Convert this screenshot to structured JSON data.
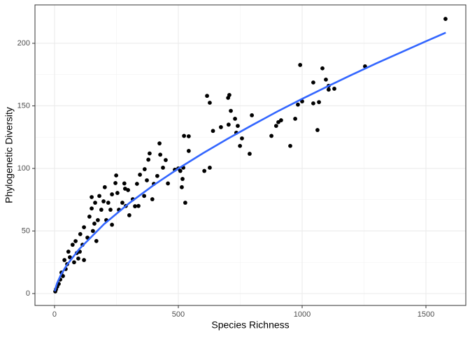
{
  "chart_data": {
    "type": "scatter",
    "x_label": "Species Richness",
    "y_label": "Phylogenetic Diversity",
    "xlim": [
      -79,
      1661
    ],
    "ylim": [
      -9.5,
      230.7
    ],
    "xticks": [
      0,
      500,
      1000,
      1500
    ],
    "yticks": [
      0,
      50,
      100,
      150,
      200
    ],
    "x_minor_grid": [
      250,
      750,
      1250
    ],
    "y_minor_grid": [
      25,
      75,
      125,
      175
    ],
    "grid": true,
    "points": {
      "color": "#000000",
      "x": [
        1579,
        1254,
        992,
        1082,
        1096,
        1045,
        1107,
        1130,
        1107,
        1068,
        1045,
        1062,
        1000,
        983,
        972,
        915,
        904,
        895,
        952,
        876,
        788,
        797,
        712,
        706,
        701,
        616,
        627,
        729,
        740,
        703,
        757,
        749,
        734,
        672,
        640,
        627,
        605,
        542,
        523,
        542,
        528,
        514,
        517,
        500,
        508,
        520,
        486,
        449,
        438,
        424,
        427,
        458,
        415,
        401,
        379,
        384,
        364,
        345,
        333,
        373,
        362,
        395,
        339,
        325,
        316,
        297,
        282,
        285,
        274,
        249,
        246,
        254,
        232,
        226,
        217,
        203,
        198,
        189,
        175,
        161,
        150,
        155,
        141,
        133,
        119,
        113,
        104,
        90,
        85,
        96,
        73,
        62,
        56,
        51,
        45,
        40,
        34,
        28,
        23,
        17,
        11,
        6,
        3,
        119,
        102,
        79,
        169,
        209,
        232,
        260,
        288,
        181,
        164,
        150,
        302
      ],
      "values": [
        219.5,
        181.6,
        182.7,
        180,
        171,
        168.7,
        166,
        163.7,
        163,
        153,
        152,
        130.7,
        153.6,
        151,
        139.7,
        138.5,
        137,
        134,
        118,
        126,
        111.7,
        142.5,
        146,
        158.7,
        156.4,
        158,
        152.5,
        139.7,
        134,
        135,
        124,
        118,
        128.5,
        133,
        130,
        100.6,
        98,
        114,
        126,
        125.7,
        72.6,
        85,
        91.6,
        100,
        98,
        100.6,
        99,
        106.7,
        100.6,
        120,
        111,
        88,
        94,
        87.7,
        107,
        112,
        99.4,
        95,
        87.7,
        90.5,
        78,
        75.4,
        70,
        69.8,
        75.4,
        82.7,
        88,
        83.8,
        72.6,
        94.4,
        88.3,
        80.4,
        79.3,
        67,
        72.6,
        85,
        73.7,
        67,
        58.7,
        55.9,
        68,
        50,
        61.5,
        44.7,
        53,
        39,
        47.5,
        32.4,
        41.9,
        28,
        39,
        29,
        33.5,
        23.5,
        19.6,
        26.8,
        14,
        16.8,
        11.2,
        7.8,
        5.6,
        3.4,
        1.7,
        26.8,
        33.5,
        25,
        42,
        58.7,
        55,
        67,
        70,
        78,
        72.6,
        77.1,
        62.6
      ]
    },
    "fit": {
      "color": "#3366ff",
      "x": [
        1,
        10,
        25,
        50,
        100,
        200,
        300,
        400,
        500,
        600,
        700,
        800,
        900,
        1000,
        1100,
        1200,
        1300,
        1400,
        1500,
        1580
      ],
      "values": [
        1.87,
        8.16,
        14.7,
        22.9,
        35.6,
        55.5,
        72.0,
        86.6,
        99.9,
        112.2,
        123.8,
        134.8,
        145.5,
        155.6,
        165.3,
        174.8,
        184.0,
        192.8,
        201.6,
        208.5
      ]
    }
  }
}
